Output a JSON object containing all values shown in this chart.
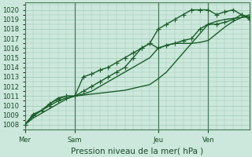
{
  "background_color": "#cce8dc",
  "grid_color": "#a0c8b4",
  "line_color": "#1a5e2a",
  "marker": "+",
  "markersize": 4,
  "linewidth": 1.0,
  "xlabel_text": "Pression niveau de la mer( hPa )",
  "yticks": [
    1008,
    1009,
    1010,
    1011,
    1012,
    1013,
    1014,
    1015,
    1016,
    1017,
    1018,
    1019,
    1020
  ],
  "ylim": [
    1007.5,
    1020.8
  ],
  "xtick_labels": [
    "Mer",
    "Sam",
    "Jeu",
    "Ven"
  ],
  "xtick_positions": [
    0,
    48,
    128,
    176
  ],
  "xlim": [
    0,
    216
  ],
  "vline_positions": [
    48,
    128,
    176
  ],
  "vline_color": "#4a7a5a",
  "fontsize_tick": 6,
  "fontsize_xlabel": 7.5,
  "tick_color": "#1a4a2a",
  "fig_facecolor": "#cce8dc",
  "series1_x": [
    0,
    8,
    16,
    24,
    32,
    40,
    48,
    56,
    64,
    72,
    80,
    88,
    96,
    104,
    112,
    120,
    128,
    136,
    144,
    152,
    160,
    168,
    176,
    184,
    192,
    200,
    208,
    216
  ],
  "series1_y": [
    1008.0,
    1008.7,
    1009.2,
    1009.7,
    1010.2,
    1010.7,
    1011.0,
    1011.1,
    1011.2,
    1011.3,
    1011.4,
    1011.5,
    1011.6,
    1011.8,
    1012.0,
    1012.2,
    1012.8,
    1013.5,
    1014.5,
    1015.5,
    1016.5,
    1017.5,
    1018.5,
    1018.8,
    1019.0,
    1019.1,
    1019.2,
    1019.3
  ],
  "series2_x": [
    0,
    8,
    16,
    24,
    32,
    40,
    48,
    56,
    64,
    72,
    80,
    88,
    96,
    104,
    112,
    120,
    128,
    136,
    144,
    152,
    160,
    168,
    176,
    184,
    192,
    200,
    208,
    216
  ],
  "series2_y": [
    1008.0,
    1008.9,
    1009.5,
    1010.2,
    1010.8,
    1011.0,
    1011.0,
    1011.2,
    1011.5,
    1012.0,
    1012.5,
    1013.0,
    1013.5,
    1014.0,
    1014.5,
    1015.0,
    1016.0,
    1016.3,
    1016.5,
    1016.5,
    1016.5,
    1016.6,
    1016.8,
    1017.5,
    1018.2,
    1018.8,
    1019.2,
    1019.5
  ],
  "series3_x": [
    0,
    8,
    16,
    24,
    32,
    40,
    48,
    56,
    64,
    72,
    80,
    88,
    96,
    104,
    112,
    120,
    128,
    136,
    144,
    152,
    160,
    168,
    176,
    184,
    192,
    200,
    208,
    216
  ],
  "series3_y": [
    1008.0,
    1009.0,
    1009.5,
    1010.0,
    1010.5,
    1010.8,
    1011.0,
    1011.5,
    1012.0,
    1012.5,
    1013.0,
    1013.5,
    1014.0,
    1015.0,
    1016.0,
    1016.5,
    1016.0,
    1016.3,
    1016.5,
    1016.8,
    1017.0,
    1018.0,
    1018.5,
    1018.5,
    1018.7,
    1019.0,
    1019.5,
    1019.0
  ],
  "series4_x": [
    0,
    8,
    16,
    24,
    32,
    40,
    48,
    56,
    64,
    72,
    80,
    88,
    96,
    104,
    112,
    120,
    128,
    136,
    144,
    152,
    160,
    168,
    176,
    184,
    192,
    200,
    208,
    216
  ],
  "series4_y": [
    1008.0,
    1009.1,
    1009.5,
    1010.2,
    1010.7,
    1011.0,
    1011.0,
    1013.0,
    1013.3,
    1013.7,
    1014.0,
    1014.5,
    1015.0,
    1015.5,
    1016.0,
    1016.5,
    1018.0,
    1018.5,
    1019.0,
    1019.5,
    1020.0,
    1020.0,
    1020.0,
    1019.5,
    1019.8,
    1020.0,
    1019.5,
    1019.2
  ]
}
